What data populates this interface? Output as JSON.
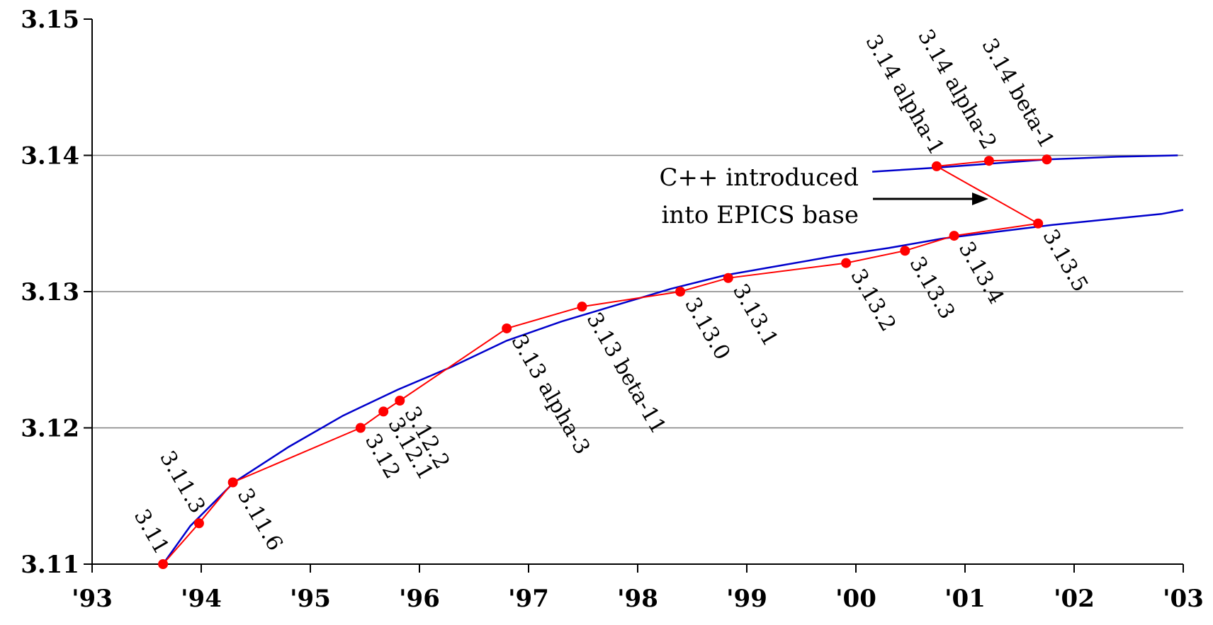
{
  "chart_data": {
    "type": "line",
    "title": "",
    "xlabel": "",
    "ylabel": "",
    "xlim": [
      1993,
      2003
    ],
    "ylim": [
      3.11,
      3.15
    ],
    "x_tick_labels": [
      "'93",
      "'94",
      "'95",
      "'96",
      "'97",
      "'98",
      "'99",
      "'00",
      "'01",
      "'02",
      "'03"
    ],
    "y_tick_labels": [
      "3.11",
      "3.12",
      "3.13",
      "3.14",
      "3.15"
    ],
    "grid": "horizontal",
    "colors": {
      "releases": "#ff0000",
      "trend": "#0000cc",
      "grid": "#808080"
    },
    "series": [
      {
        "points": [
          {
            "x": 1993.65,
            "y": 3.11,
            "label": "3.11"
          },
          {
            "x": 1993.98,
            "y": 3.113,
            "label": "3.11.3"
          },
          {
            "x": 1994.29,
            "y": 3.116,
            "label": "3.11.6"
          },
          {
            "x": 1995.46,
            "y": 3.12,
            "label": "3.12"
          },
          {
            "x": 1995.67,
            "y": 3.1212,
            "label": "3.12.1"
          },
          {
            "x": 1995.82,
            "y": 3.122,
            "label": "3.12.2"
          },
          {
            "x": 1996.8,
            "y": 3.1273,
            "label": "3.13 alpha-3"
          },
          {
            "x": 1997.49,
            "y": 3.1289,
            "label": "3.13 beta-11"
          },
          {
            "x": 1998.39,
            "y": 3.13,
            "label": "3.13.0"
          },
          {
            "x": 1998.83,
            "y": 3.131,
            "label": "3.13.1"
          },
          {
            "x": 1999.91,
            "y": 3.1321,
            "label": "3.13.2"
          },
          {
            "x": 2000.45,
            "y": 3.133,
            "label": "3.13.3"
          },
          {
            "x": 2000.9,
            "y": 3.1341,
            "label": "3.13.4"
          },
          {
            "x": 2001.67,
            "y": 3.135,
            "label": "3.13.5"
          },
          {
            "x": 2000.74,
            "y": 3.1392,
            "label": "3.14 alpha-1"
          },
          {
            "x": 2001.22,
            "y": 3.1396,
            "label": "3.14 alpha-2"
          },
          {
            "x": 2001.75,
            "y": 3.1397,
            "label": "3.14 beta-1"
          }
        ],
        "path": [
          "3.11",
          "3.11.3",
          "3.11.6",
          "3.12",
          "3.12.1",
          "3.12.2",
          "3.13 alpha-3",
          "3.13 beta-11",
          "3.13.0",
          "3.13.1",
          "3.13.2",
          "3.13.3",
          "3.13.4",
          "3.13.5",
          "3.14 alpha-1",
          "3.14 alpha-2",
          "3.14 beta-1"
        ]
      }
    ],
    "trend_curves": [
      [
        [
          1993.65,
          3.11
        ],
        [
          1993.9,
          3.1128
        ],
        [
          1994.3,
          3.116
        ],
        [
          1994.8,
          3.1186
        ],
        [
          1995.3,
          3.1209
        ],
        [
          1995.8,
          3.1228
        ],
        [
          1996.3,
          3.1245
        ],
        [
          1996.8,
          3.1264
        ],
        [
          1997.3,
          3.1278
        ],
        [
          1997.8,
          3.129
        ],
        [
          1998.3,
          3.1302
        ],
        [
          1998.8,
          3.1312
        ],
        [
          1999.3,
          3.1319
        ],
        [
          1999.8,
          3.1326
        ],
        [
          2000.3,
          3.1332
        ],
        [
          2000.8,
          3.1339
        ],
        [
          2001.3,
          3.1344
        ],
        [
          2001.8,
          3.1349
        ],
        [
          2002.3,
          3.1353
        ],
        [
          2002.8,
          3.1357
        ],
        [
          2003.0,
          3.136
        ]
      ],
      [
        [
          2000.15,
          3.1388
        ],
        [
          2000.75,
          3.1391
        ],
        [
          2001.25,
          3.1394
        ],
        [
          2001.75,
          3.1397
        ],
        [
          2002.4,
          3.1399
        ],
        [
          2002.95,
          3.14
        ]
      ]
    ],
    "annotation": {
      "lines": [
        "C++ introduced",
        "into EPICS base"
      ]
    }
  }
}
